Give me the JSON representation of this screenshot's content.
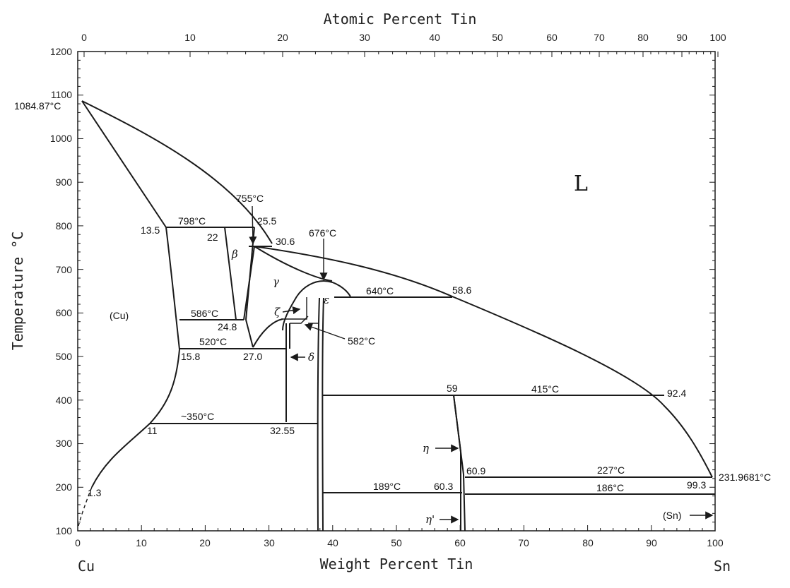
{
  "axes": {
    "top_title": "Atomic Percent Tin",
    "bottom_title": "Weight Percent Tin",
    "left_title": "Temperature °C",
    "left_element": "Cu",
    "right_element": "Sn",
    "top_ticks": [
      "0",
      "10",
      "20",
      "30",
      "40",
      "50",
      "60",
      "70",
      "80",
      "90",
      "100"
    ],
    "bottom_ticks": [
      "0",
      "10",
      "20",
      "30",
      "40",
      "50",
      "60",
      "70",
      "80",
      "90",
      "100"
    ],
    "left_ticks": [
      "100",
      "200",
      "300",
      "400",
      "500",
      "600",
      "700",
      "800",
      "900",
      "1000",
      "1100",
      "1200"
    ]
  },
  "labels": {
    "cu_melting": "1084.87°C",
    "sn_melting": "231.9681°C",
    "liquid": "L",
    "cu_phase": "(Cu)",
    "sn_phase": "(Sn)",
    "beta": "β",
    "gamma": "γ",
    "zeta": "ζ",
    "epsilon": "ε",
    "delta": "δ",
    "eta": "η",
    "eta_prime": "η'",
    "t755": "755°C",
    "t798": "798°C",
    "t676": "676°C",
    "t640": "640°C",
    "t586": "586°C",
    "t582": "582°C",
    "t520": "520°C",
    "t415": "415°C",
    "t350": "~350°C",
    "t227": "227°C",
    "t189": "189°C",
    "t186": "186°C",
    "c13_5": "13.5",
    "c22": "22",
    "c25_5": "25.5",
    "c30_6": "30.6",
    "c58_6": "58.6",
    "c24_8": "24.8",
    "c15_8": "15.8",
    "c27_0": "27.0",
    "c59": "59",
    "c92_4": "92.4",
    "c11": "11",
    "c32_55": "32.55",
    "c60_9": "60.9",
    "c60_3": "60.3",
    "c99_3": "99.3",
    "c1_3": "1.3"
  }
}
